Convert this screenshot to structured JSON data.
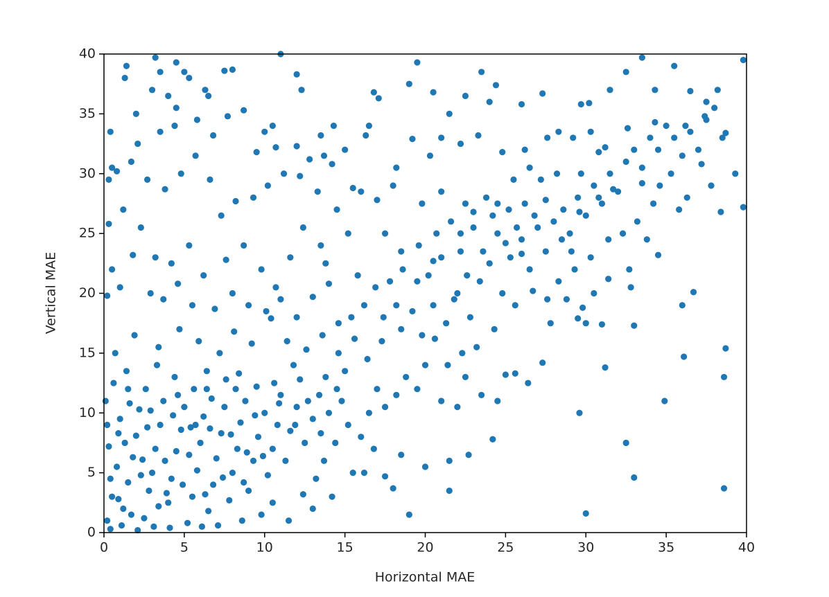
{
  "chart_data": {
    "type": "scatter",
    "xlabel": "Horizontal MAE",
    "ylabel": "Vertical MAE",
    "color": "#1f77b4",
    "xlim": [
      0,
      40
    ],
    "ylim": [
      0,
      40
    ],
    "xticks": [
      0,
      5,
      10,
      15,
      20,
      25,
      30,
      35,
      40
    ],
    "yticks": [
      0,
      5,
      10,
      15,
      20,
      25,
      30,
      35,
      40
    ],
    "grid": false,
    "x": [
      0.5,
      0.3,
      0.4,
      1.3,
      1.4,
      2,
      3.2,
      3.5,
      4.5,
      5,
      5.3,
      3,
      4,
      4.5,
      6.3,
      6.5,
      7.5,
      8,
      8.7,
      10,
      10.5,
      11,
      12,
      12.3,
      13.5,
      14.3,
      15,
      16.8,
      16.5,
      17.1,
      19,
      19.5,
      20.5,
      21,
      21.5,
      22.5,
      23.5,
      24,
      24.4,
      26,
      27.3,
      29.7,
      30.2,
      31.5,
      32.5,
      33.5,
      34.3,
      35.5,
      36.5,
      37.5,
      38.2,
      39.8,
      39.3,
      39.8,
      38.7,
      38.6,
      38.6,
      33,
      32.5,
      30,
      29.6,
      31.2,
      31,
      33,
      32.8,
      34.5,
      36,
      36.7,
      36.1,
      34.9,
      19,
      21.5,
      22.7,
      24.2,
      26.4,
      25.6,
      27.3,
      27.8,
      29.5,
      30,
      0.2,
      0.5,
      0.8,
      0.3,
      1,
      1.2,
      1.5,
      1.8,
      2,
      2.2,
      2.5,
      2.8,
      3,
      3.2,
      3.5,
      3.7,
      4,
      4.2,
      4.5,
      4.8,
      5,
      5.2,
      5.5,
      5.8,
      6,
      6.2,
      6.5,
      6.8,
      7,
      7.3,
      7.5,
      7.8,
      8,
      8.3,
      8.5,
      8.8,
      9,
      9.3,
      9.6,
      10,
      10.2,
      10.5,
      10.8,
      11,
      11.3,
      11.6,
      12,
      12.2,
      12.5,
      13,
      13.4,
      13.8,
      14,
      14.5,
      15,
      0.1,
      0.6,
      1.4,
      2.6,
      3.3,
      4.4,
      5.6,
      6.4,
      7.6,
      8.4,
      9.5,
      10.6,
      11.8,
      0.4,
      1.1,
      2.1,
      3.1,
      4.1,
      6.1,
      7.1,
      8.6,
      9.8,
      11.5,
      12.4,
      13.2,
      13.7,
      14.4,
      15.2,
      16,
      16.5,
      17,
      17.5,
      18.2,
      18.8,
      19.5,
      20,
      21,
      22,
      22.5,
      23.5,
      24.5,
      25,
      15.5,
      16.2,
      17.5,
      18,
      18.5,
      20,
      21.5,
      16.8,
      14.2,
      13,
      10.5,
      0.9,
      2.4,
      3.9,
      5.4,
      6.7,
      8.9,
      1.6,
      0.7,
      1.9,
      3.4,
      4.7,
      5.9,
      7.2,
      8.1,
      9.2,
      10.4,
      11.4,
      12.6,
      13.6,
      14.6,
      15.6,
      16.4,
      17.3,
      18.5,
      19.2,
      19.8,
      20.5,
      21.3,
      22,
      22.8,
      23.4,
      24,
      24.8,
      25.3,
      26,
      26.5,
      27,
      27.5,
      28,
      28.6,
      29,
      29.5,
      30,
      30.5,
      31,
      31.5,
      32,
      32.5,
      33,
      33.5,
      34,
      34.5,
      35,
      35.5,
      36,
      36.5,
      37,
      37.5,
      38,
      38.5,
      37.2,
      35.3,
      34.2,
      33.2,
      36.3,
      37.8,
      38.4,
      32.3,
      31.4,
      30.3,
      29.3,
      28.3,
      27.6,
      26.7,
      25.6,
      24.3,
      23.2,
      22.3,
      21.4,
      20.6,
      20.2,
      21,
      22.2,
      23,
      24.2,
      25.2,
      26.2,
      27.2,
      28.2,
      29.7,
      30.8,
      29.2,
      26.5,
      25.5,
      23.8,
      22.5,
      21.6,
      20.7,
      19.6,
      18.6,
      17.8,
      16.9,
      16.2,
      15.4,
      14.6,
      17.5,
      18,
      16,
      15.2,
      14.5,
      13.3,
      12.8,
      11.2,
      10.2,
      9.3,
      8.2,
      7.3,
      6.6,
      5.7,
      4.8,
      3.8,
      2.7,
      1.7,
      0.8,
      1.2,
      2.3,
      3.2,
      4.2,
      5.3,
      6.2,
      7.6,
      8.7,
      9.8,
      10.7,
      11.6,
      12.4,
      13.8,
      0.3,
      0.5,
      0.2,
      1,
      1.8,
      2.9,
      3.7,
      4.6,
      5.5,
      6.9,
      8,
      9,
      10.1,
      11,
      12,
      13,
      14,
      2.1,
      3.5,
      4.4,
      5.8,
      6.8,
      7.7,
      9.5,
      10.7,
      12,
      13.7,
      16.3,
      18.2,
      19.2,
      20.3,
      22.2,
      23.3,
      24.8,
      26.2,
      28.3,
      27.6,
      30.3,
      31.2,
      32.6,
      34.3,
      36.2,
      37.4,
      38.7,
      19.5,
      18.2,
      17.4,
      15.8,
      13.5,
      25.7,
      24.5,
      23.6,
      26.8,
      28.5,
      27.5,
      22.6,
      21.8,
      15.5,
      17,
      14.2,
      12.2,
      19.8,
      21,
      23,
      24.5,
      22.2,
      18.5,
      20.5,
      25,
      26,
      29.6,
      30.8,
      31.7,
      33.5,
      35.8,
      34.6,
      33.8,
      32.7,
      31.4,
      30.5,
      29.8,
      28.8,
      29.1,
      0.4,
      0.9,
      1.3,
      1.7,
      2.3,
      2.7,
      3.4,
      3.8,
      4.3,
      4.9,
      5.3,
      5.7,
      6.3,
      6.6,
      7.4,
      7.9,
      8.7,
      9.4,
      9.9,
      10.9,
      11.9,
      12.7,
      13.5,
      14.8,
      0.2,
      1.5,
      2.9,
      4.6,
      6.4,
      8.2
    ],
    "values": [
      30.5,
      29.5,
      33.5,
      38,
      39,
      35,
      39.7,
      38.5,
      39.3,
      38.5,
      38,
      37,
      36.5,
      35.5,
      37,
      36.5,
      38.6,
      38.7,
      35.3,
      33.5,
      34,
      40,
      38.3,
      37,
      33.2,
      34,
      32,
      36.8,
      34,
      36.3,
      37.5,
      39.3,
      36.8,
      33,
      35,
      36.5,
      38.5,
      36,
      37.4,
      35.8,
      36.7,
      35.8,
      35.9,
      37,
      38.5,
      39.7,
      37,
      39,
      36.9,
      36,
      37,
      39.5,
      30,
      27.2,
      15.4,
      13,
      3.7,
      4.6,
      7.5,
      1.6,
      10,
      13.8,
      17.4,
      17.3,
      20.5,
      23.2,
      19,
      20.1,
      14.7,
      11,
      1.5,
      3.5,
      6.5,
      7.8,
      12.5,
      13.3,
      14.2,
      17.5,
      17.9,
      17.5,
      1,
      3,
      5.5,
      7.2,
      9.5,
      2,
      4.2,
      6.3,
      8.1,
      10.3,
      1.2,
      3.5,
      5,
      7,
      9,
      11,
      2.5,
      4.5,
      6.8,
      8.6,
      10.5,
      0.8,
      3,
      5.2,
      7.5,
      9.7,
      1.8,
      4,
      6.2,
      8.3,
      10.5,
      2.7,
      5,
      7,
      9.2,
      11,
      3.5,
      6,
      8,
      10,
      4.8,
      7,
      9,
      11.5,
      6,
      8.5,
      10.5,
      12.8,
      7.5,
      9.5,
      11.5,
      13,
      10,
      12,
      13.5,
      11,
      12.5,
      13.5,
      12,
      14,
      13,
      12,
      13.5,
      12.8,
      13.3,
      12.2,
      12.5,
      14,
      0.3,
      0.6,
      0.2,
      0.5,
      0.4,
      0.5,
      0.6,
      1,
      1.5,
      1,
      3.2,
      4.5,
      6,
      7.5,
      9,
      8,
      10,
      12,
      10.5,
      11.5,
      13,
      12,
      14,
      11,
      10.5,
      13,
      11.5,
      11,
      13.2,
      5,
      5,
      4.7,
      3.7,
      6.5,
      5.5,
      6,
      7,
      3,
      2,
      2.5,
      8.3,
      6.1,
      3.3,
      8.8,
      11.2,
      6.7,
      10.8,
      15,
      16.5,
      15.5,
      17,
      16,
      15,
      16.8,
      15.8,
      17.9,
      16,
      15.3,
      16.5,
      15,
      16.2,
      14.5,
      16,
      17,
      18.5,
      16.5,
      19,
      17.5,
      20,
      18,
      21,
      22.5,
      20,
      23,
      24.5,
      22,
      25.5,
      23.5,
      26,
      27,
      25,
      28,
      26.5,
      29,
      27.5,
      30,
      28.5,
      31,
      32,
      30.5,
      33,
      32,
      34,
      33,
      31.5,
      33.5,
      32,
      34.5,
      35.5,
      33,
      30.8,
      30,
      27.5,
      26,
      28,
      29,
      26.8,
      25,
      24.5,
      23,
      22,
      21,
      19.5,
      20.2,
      19,
      17,
      15.5,
      15,
      14,
      16.2,
      21.5,
      23,
      23.5,
      25.5,
      26.5,
      27,
      27.5,
      29.5,
      30,
      30,
      31.8,
      33,
      30.5,
      29.5,
      28,
      27.5,
      26,
      25,
      24,
      22,
      21,
      20.5,
      19,
      18,
      17.5,
      25,
      29,
      28.5,
      25,
      27,
      28.5,
      31.2,
      30,
      29,
      28,
      27.7,
      26.5,
      29.5,
      31.5,
      30,
      28.7,
      29.5,
      31,
      30.2,
      27,
      25.5,
      23,
      22.5,
      24,
      21.5,
      22.8,
      24,
      22,
      20.5,
      23,
      25.5,
      22.5,
      25.8,
      22,
      19.8,
      20.5,
      23.2,
      20,
      19.5,
      20.8,
      19,
      18.7,
      20,
      19,
      18.5,
      19.5,
      18,
      19.7,
      20.8,
      32.5,
      33.5,
      34,
      34.5,
      33.2,
      34.8,
      31.8,
      32.2,
      32.3,
      31.5,
      33.2,
      30.5,
      32.9,
      31.5,
      32.5,
      33.2,
      31.8,
      32,
      33.5,
      33,
      33.5,
      32.2,
      33.8,
      34.3,
      34,
      34.8,
      33.4,
      21,
      19,
      18,
      21.5,
      24,
      25.5,
      25,
      23.5,
      26.5,
      24.5,
      27.8,
      21.5,
      19.5,
      28.8,
      27.8,
      30.8,
      29.8,
      27.5,
      28.5,
      26.8,
      27.5,
      25,
      23.5,
      22.7,
      24.2,
      23.3,
      26.8,
      28,
      28.7,
      29.2,
      27,
      29,
      24.5,
      22,
      21.2,
      20,
      18.8,
      19.5,
      23.5,
      4.5,
      2.8,
      7.5,
      1.5,
      4.8,
      8.8,
      2.2,
      6,
      9.8,
      4,
      6.5,
      9,
      3.2,
      8.7,
      4.6,
      8.2,
      4.2,
      9.8,
      6.4,
      10.8,
      9,
      11,
      8.3,
      11,
      9,
      12,
      10.2,
      11.5,
      12,
      12
    ]
  }
}
